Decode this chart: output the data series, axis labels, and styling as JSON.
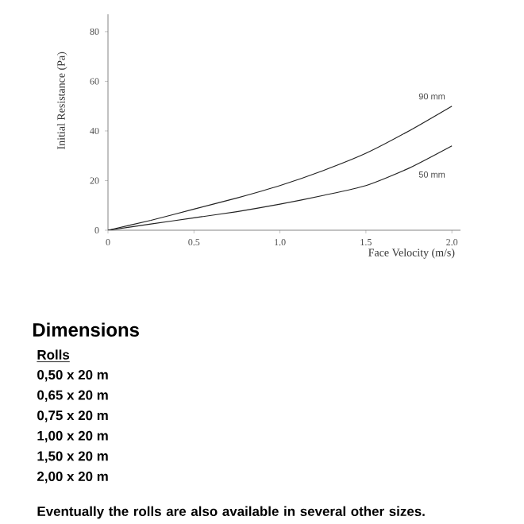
{
  "chart_data": {
    "type": "line",
    "xlabel": "Face Velocity  (m/s)",
    "ylabel": "Initial Resistance  (Pa)",
    "x": [
      0,
      0.25,
      0.5,
      0.75,
      1.0,
      1.25,
      1.5,
      1.75,
      2.0
    ],
    "series": [
      {
        "name": "90 mm",
        "color": "#222222",
        "values": [
          0,
          4,
          8.5,
          13,
          18,
          24,
          31,
          40,
          50
        ]
      },
      {
        "name": "50 mm",
        "color": "#222222",
        "values": [
          0,
          2.5,
          5,
          7.5,
          10.5,
          14,
          18,
          25,
          34
        ]
      }
    ],
    "xlim": [
      0,
      2.05
    ],
    "ylim": [
      0,
      87
    ],
    "xticks": [
      0,
      {
        "value": 0.5,
        "label": "0.5"
      },
      {
        "value": 1.0,
        "label": "1.0"
      },
      {
        "value": 1.5,
        "label": "1.5"
      },
      {
        "value": 2.0,
        "label": "2.0"
      }
    ],
    "yticks": [
      0,
      20,
      40,
      60,
      80
    ],
    "grid": false,
    "legend": false,
    "marker": "none",
    "line_style": "solid",
    "annotations": [
      "Dimensions",
      "Rolls",
      "0,50 x 20 m",
      "0,65 x 20 m",
      "0,75 x 20 m",
      "1,00 x 20 m",
      "1,50 x 20 m",
      "2,00 x 20 m",
      "Eventually the rolls are also available in several other sizes."
    ]
  }
}
